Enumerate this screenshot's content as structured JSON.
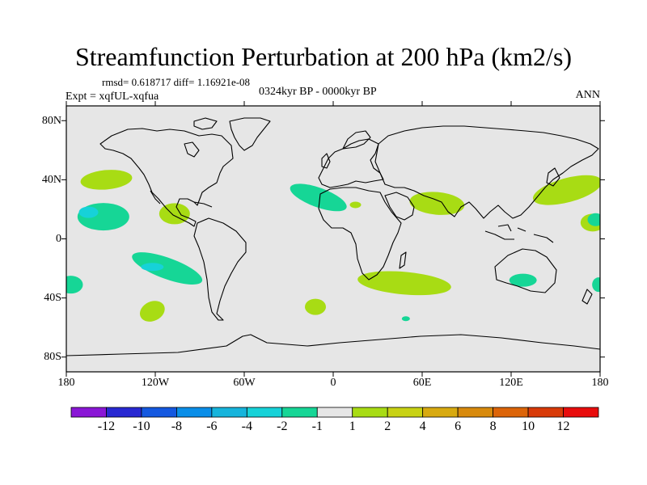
{
  "figure": {
    "title": "Streamfunction Perturbation at 200 hPa (km2/s)",
    "stats_text": "rmsd= 0.618717 diff= 1.16921e-08",
    "expt_text": "Expt = xqfUL-xqfua",
    "period_text": "0324kyr BP - 0000kyr BP",
    "season_text": "ANN"
  },
  "chart_data": {
    "type": "contour-map",
    "title": "Streamfunction Perturbation at 200 hPa (km2/s)",
    "variable": "Streamfunction perturbation",
    "level": "200 hPa",
    "units": "km2/s",
    "experiment": "xqfUL-xqfua",
    "period": "0324kyr BP - 0000kyr BP",
    "season": "ANN",
    "rmsd": 0.618717,
    "diff": 1.16921e-08,
    "projection": "cylindrical equidistant",
    "lon_range": [
      -180,
      180
    ],
    "lat_range": [
      -90,
      90
    ],
    "lat_ticks": [
      "80N",
      "40N",
      "0",
      "40S",
      "80S"
    ],
    "lon_ticks": [
      "180",
      "120W",
      "60W",
      "0",
      "60E",
      "120E",
      "180"
    ],
    "colorbar": {
      "labels": [
        "-12",
        "-10",
        "-8",
        "-6",
        "-4",
        "-2",
        "-1",
        "1",
        "2",
        "4",
        "6",
        "8",
        "10",
        "12"
      ],
      "colors": [
        "#8a16d6",
        "#2828d2",
        "#1458e0",
        "#0a8ee8",
        "#16b4dc",
        "#16d2d8",
        "#16d696",
        "#e6e6e6",
        "#a8dc14",
        "#c8d214",
        "#d8aa10",
        "#d88a0c",
        "#dc6408",
        "#d83a08",
        "#e80c0c"
      ]
    },
    "features": [
      {
        "sign": "positive",
        "range": "1 to 2",
        "lon": -153,
        "lat": 40
      },
      {
        "sign": "negative",
        "range": "-1 to -2",
        "lon": -155,
        "lat": 15
      },
      {
        "sign": "negative",
        "range": "-2 to -4",
        "lon": -165,
        "lat": 18
      },
      {
        "sign": "positive",
        "range": "1 to 2",
        "lon": -107,
        "lat": 17
      },
      {
        "sign": "negative",
        "range": "-1 to -2",
        "lon": -112,
        "lat": -20
      },
      {
        "sign": "negative",
        "range": "-2 to -4",
        "lon": -122,
        "lat": -19
      },
      {
        "sign": "negative",
        "range": "-1 to -2",
        "lon": -177,
        "lat": -31
      },
      {
        "sign": "positive",
        "range": "1 to 2",
        "lon": -122,
        "lat": -49
      },
      {
        "sign": "negative",
        "range": "-1 to -2",
        "lon": -10,
        "lat": 28
      },
      {
        "sign": "positive",
        "range": "1 to 2",
        "lon": 15,
        "lat": 23
      },
      {
        "sign": "positive",
        "range": "1 to 2",
        "lon": 70,
        "lat": 24
      },
      {
        "sign": "positive",
        "range": "1 to 2",
        "lon": 158,
        "lat": 33
      },
      {
        "sign": "positive",
        "range": "1 to 2",
        "lon": 175,
        "lat": 11
      },
      {
        "sign": "negative",
        "range": "-1 to -2",
        "lon": 177,
        "lat": 13
      },
      {
        "sign": "positive",
        "range": "1 to 2",
        "lon": 48,
        "lat": -30
      },
      {
        "sign": "negative",
        "range": "-1 to -2",
        "lon": 128,
        "lat": -28
      },
      {
        "sign": "negative",
        "range": "-1 to -2",
        "lon": 179,
        "lat": -31
      },
      {
        "sign": "positive",
        "range": "1 to 2",
        "lon": -12,
        "lat": -46
      },
      {
        "sign": "negative",
        "range": "-1 to -2",
        "lon": 49,
        "lat": -54
      }
    ]
  }
}
